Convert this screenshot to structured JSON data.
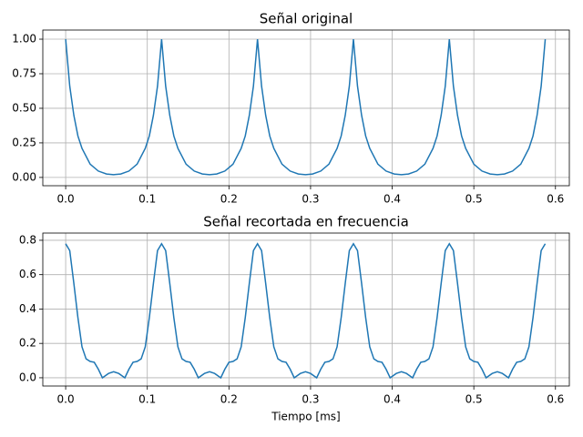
{
  "chart_data": [
    {
      "type": "line",
      "title": "Señal original",
      "color": "#1f77b4",
      "grid": true,
      "x": [
        0,
        0.005,
        0.01,
        0.015,
        0.02,
        0.03,
        0.04,
        0.05,
        0.0588,
        0.0675,
        0.0775,
        0.0875,
        0.0975,
        0.1025,
        0.1075,
        0.1125,
        0.1175,
        0.1225,
        0.1275,
        0.1325,
        0.1375,
        0.1475,
        0.1575,
        0.1675,
        0.1763,
        0.185,
        0.195,
        0.205,
        0.215,
        0.22,
        0.225,
        0.23,
        0.235,
        0.24,
        0.245,
        0.25,
        0.255,
        0.265,
        0.275,
        0.285,
        0.2938,
        0.3025,
        0.3125,
        0.3225,
        0.3325,
        0.3375,
        0.3425,
        0.3475,
        0.3525,
        0.3575,
        0.3625,
        0.3675,
        0.3725,
        0.3825,
        0.3925,
        0.4025,
        0.4113,
        0.42,
        0.43,
        0.44,
        0.45,
        0.455,
        0.46,
        0.465,
        0.47,
        0.475,
        0.48,
        0.485,
        0.49,
        0.5,
        0.51,
        0.52,
        0.5288,
        0.5375,
        0.5475,
        0.5575,
        0.5675,
        0.5725,
        0.5775,
        0.5825,
        0.5875
      ],
      "values": [
        1.0,
        0.66,
        0.45,
        0.3,
        0.21,
        0.096,
        0.046,
        0.025,
        0.02,
        0.025,
        0.046,
        0.096,
        0.21,
        0.3,
        0.45,
        0.66,
        1.0,
        0.66,
        0.45,
        0.3,
        0.21,
        0.096,
        0.046,
        0.025,
        0.02,
        0.025,
        0.046,
        0.096,
        0.21,
        0.3,
        0.45,
        0.66,
        1.0,
        0.66,
        0.45,
        0.3,
        0.21,
        0.096,
        0.046,
        0.025,
        0.02,
        0.025,
        0.046,
        0.096,
        0.21,
        0.3,
        0.45,
        0.66,
        1.0,
        0.66,
        0.45,
        0.3,
        0.21,
        0.096,
        0.046,
        0.025,
        0.02,
        0.025,
        0.046,
        0.096,
        0.21,
        0.3,
        0.45,
        0.66,
        1.0,
        0.66,
        0.45,
        0.3,
        0.21,
        0.096,
        0.046,
        0.025,
        0.02,
        0.025,
        0.046,
        0.096,
        0.21,
        0.3,
        0.45,
        0.66,
        1.0
      ],
      "xlim": [
        -0.028,
        0.617
      ],
      "ylim": [
        -0.06,
        1.066
      ],
      "xticks": [
        {
          "value": 0,
          "label": "0.0"
        },
        {
          "value": 0.1,
          "label": "0.1"
        },
        {
          "value": 0.2,
          "label": "0.2"
        },
        {
          "value": 0.3,
          "label": "0.3"
        },
        {
          "value": 0.4,
          "label": "0.4"
        },
        {
          "value": 0.5,
          "label": "0.5"
        },
        {
          "value": 0.6,
          "label": "0.6"
        }
      ],
      "yticks": [
        {
          "value": 0,
          "label": "0.00"
        },
        {
          "value": 0.25,
          "label": "0.25"
        },
        {
          "value": 0.5,
          "label": "0.50"
        },
        {
          "value": 0.75,
          "label": "0.75"
        },
        {
          "value": 1,
          "label": "1.00"
        }
      ]
    },
    {
      "type": "line",
      "title": "Señal recortada en frecuencia",
      "x_label": "Tiempo [ms]",
      "color": "#1f77b4",
      "grid": true,
      "x": [
        0,
        0.005,
        0.01,
        0.015,
        0.02,
        0.025,
        0.03,
        0.035,
        0.04,
        0.045,
        0.0525,
        0.0588,
        0.065,
        0.0725,
        0.0775,
        0.0825,
        0.0875,
        0.0925,
        0.0975,
        0.1025,
        0.1075,
        0.1125,
        0.1175,
        0.1225,
        0.1275,
        0.1325,
        0.1375,
        0.1425,
        0.1475,
        0.1525,
        0.1575,
        0.1625,
        0.17,
        0.1763,
        0.1825,
        0.19,
        0.195,
        0.2,
        0.205,
        0.21,
        0.215,
        0.22,
        0.225,
        0.23,
        0.235,
        0.24,
        0.245,
        0.25,
        0.255,
        0.26,
        0.265,
        0.27,
        0.275,
        0.28,
        0.2875,
        0.2938,
        0.3,
        0.3075,
        0.3125,
        0.3175,
        0.3225,
        0.3275,
        0.3325,
        0.3375,
        0.3425,
        0.3475,
        0.3525,
        0.3575,
        0.3625,
        0.3675,
        0.3725,
        0.3775,
        0.3825,
        0.3875,
        0.3925,
        0.3975,
        0.405,
        0.4113,
        0.4175,
        0.425,
        0.43,
        0.435,
        0.44,
        0.445,
        0.45,
        0.455,
        0.46,
        0.465,
        0.47,
        0.475,
        0.48,
        0.485,
        0.49,
        0.495,
        0.5,
        0.505,
        0.51,
        0.515,
        0.5225,
        0.5288,
        0.535,
        0.5425,
        0.5475,
        0.5525,
        0.5575,
        0.5625,
        0.5675,
        0.5725,
        0.5775,
        0.5825,
        0.5875
      ],
      "values": [
        0.78,
        0.74,
        0.55,
        0.35,
        0.18,
        0.11,
        0.095,
        0.09,
        0.05,
        0.0,
        0.025,
        0.035,
        0.025,
        0.0,
        0.05,
        0.09,
        0.095,
        0.11,
        0.18,
        0.35,
        0.55,
        0.74,
        0.78,
        0.74,
        0.55,
        0.35,
        0.18,
        0.11,
        0.095,
        0.09,
        0.05,
        0.0,
        0.025,
        0.035,
        0.025,
        0.0,
        0.05,
        0.09,
        0.095,
        0.11,
        0.18,
        0.35,
        0.55,
        0.74,
        0.78,
        0.74,
        0.55,
        0.35,
        0.18,
        0.11,
        0.095,
        0.09,
        0.05,
        0.0,
        0.025,
        0.035,
        0.025,
        0.0,
        0.05,
        0.09,
        0.095,
        0.11,
        0.18,
        0.35,
        0.55,
        0.74,
        0.78,
        0.74,
        0.55,
        0.35,
        0.18,
        0.11,
        0.095,
        0.09,
        0.05,
        0.0,
        0.025,
        0.035,
        0.025,
        0.0,
        0.05,
        0.09,
        0.095,
        0.11,
        0.18,
        0.35,
        0.55,
        0.74,
        0.78,
        0.74,
        0.55,
        0.35,
        0.18,
        0.11,
        0.095,
        0.09,
        0.05,
        0.0,
        0.025,
        0.035,
        0.025,
        0.0,
        0.05,
        0.09,
        0.095,
        0.11,
        0.18,
        0.35,
        0.55,
        0.74,
        0.78
      ],
      "xlim": [
        -0.028,
        0.617
      ],
      "ylim": [
        -0.048,
        0.842
      ],
      "xticks": [
        {
          "value": 0,
          "label": "0.0"
        },
        {
          "value": 0.1,
          "label": "0.1"
        },
        {
          "value": 0.2,
          "label": "0.2"
        },
        {
          "value": 0.3,
          "label": "0.3"
        },
        {
          "value": 0.4,
          "label": "0.4"
        },
        {
          "value": 0.5,
          "label": "0.5"
        },
        {
          "value": 0.6,
          "label": "0.6"
        }
      ],
      "yticks": [
        {
          "value": 0,
          "label": "0.0"
        },
        {
          "value": 0.2,
          "label": "0.2"
        },
        {
          "value": 0.4,
          "label": "0.4"
        },
        {
          "value": 0.6,
          "label": "0.6"
        },
        {
          "value": 0.8,
          "label": "0.8"
        }
      ]
    }
  ]
}
